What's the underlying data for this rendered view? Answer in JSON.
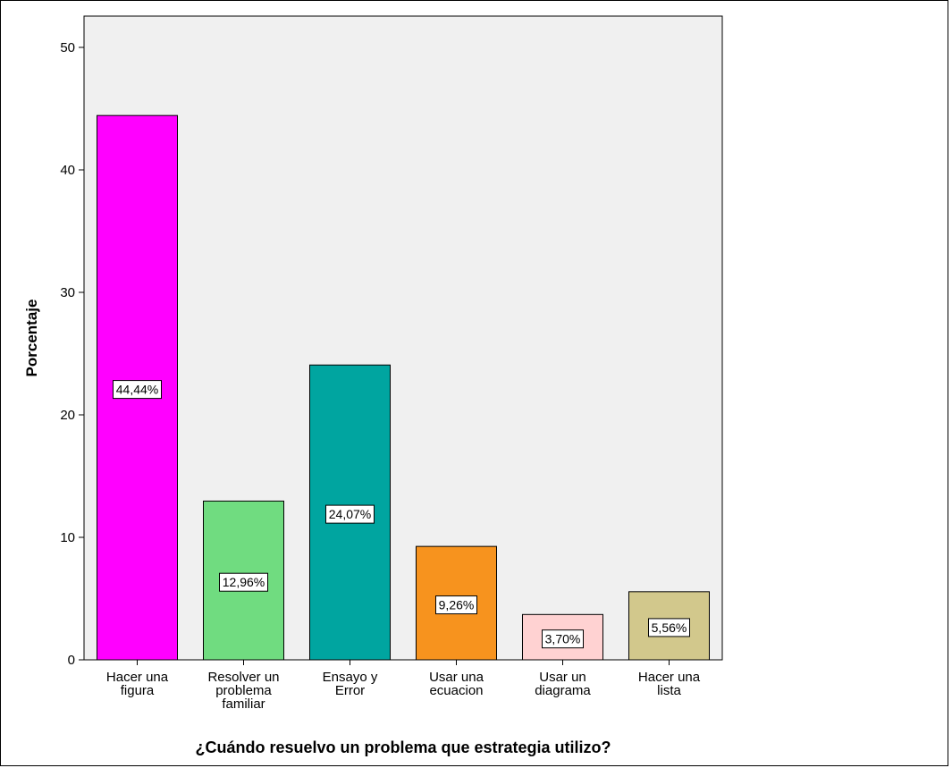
{
  "chart_data": {
    "type": "bar",
    "categories": [
      [
        "Hacer una",
        "figura"
      ],
      [
        "Resolver un",
        "problema",
        "familiar"
      ],
      [
        "Ensayo y",
        "Error"
      ],
      [
        "Usar  una",
        "ecuacion"
      ],
      [
        "Usar un",
        "diagrama"
      ],
      [
        "Hacer una",
        "lista"
      ]
    ],
    "values": [
      44.44,
      12.96,
      24.07,
      9.26,
      3.7,
      5.56
    ],
    "data_labels": [
      "44,44%",
      "12,96%",
      "24,07%",
      "9,26%",
      "3,70%",
      "5,56%"
    ],
    "colors": [
      "#ff00ff",
      "#70dc80",
      "#00a5a0",
      "#f7931e",
      "#ffd2d2",
      "#d2c88c"
    ],
    "ylabel": "Porcentaje",
    "xlabel": "¿Cuándo  resuelvo un problema que estrategia utilizo?",
    "ylim": [
      0,
      52
    ],
    "yticks": [
      0,
      10,
      20,
      30,
      40,
      50
    ],
    "plot_background": "#f0f0f0",
    "grid": false
  }
}
